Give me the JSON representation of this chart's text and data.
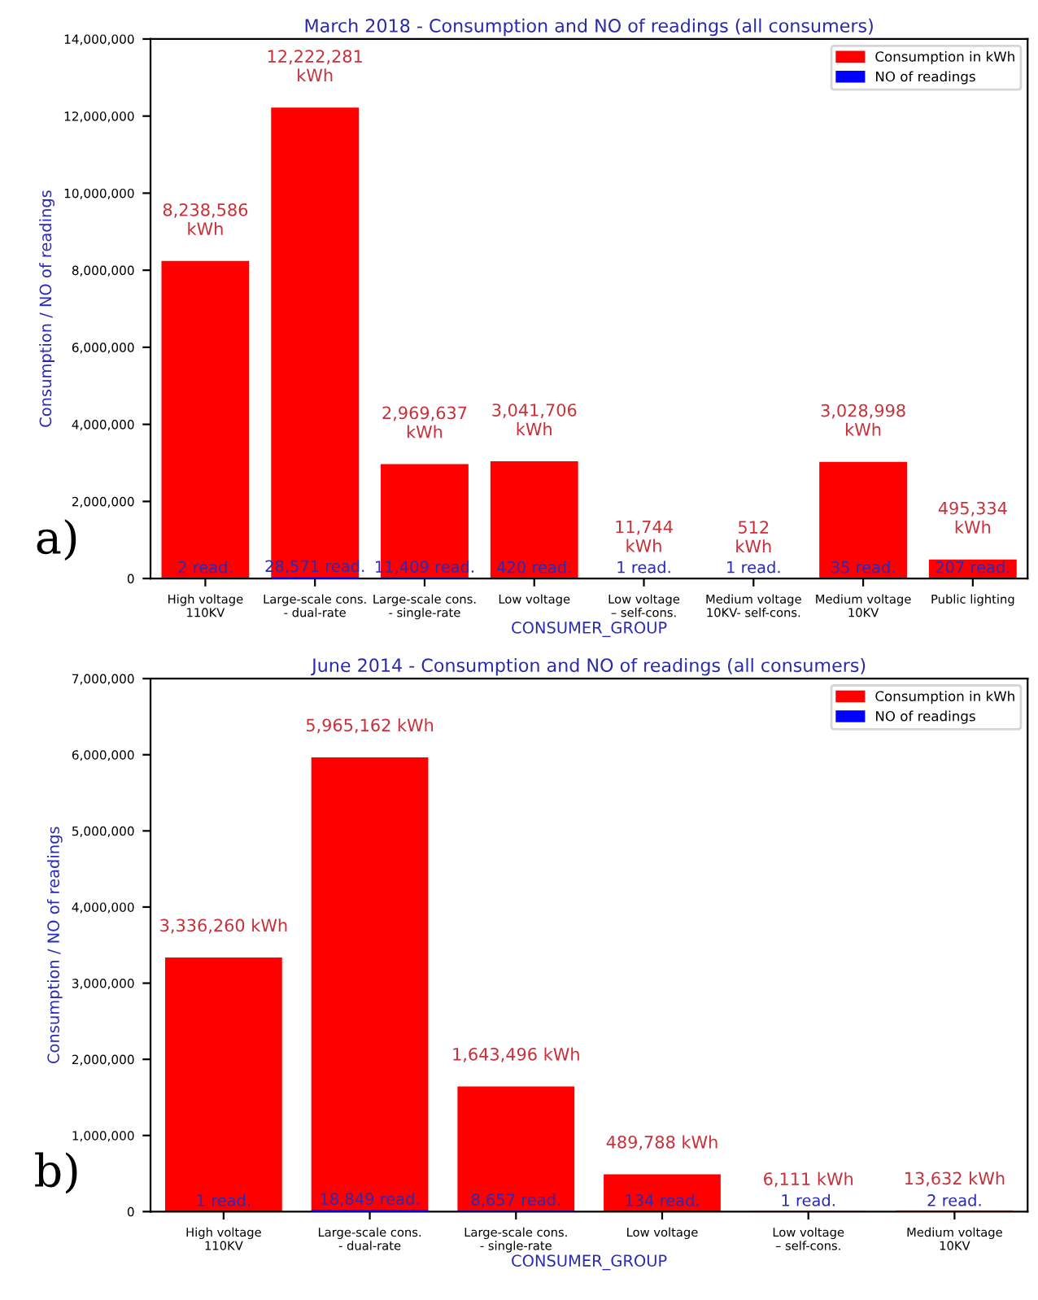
{
  "chart_data": [
    {
      "type": "bar",
      "title": "March 2018 - Consumption and NO of readings (all consumers)",
      "xlabel": "CONSUMER_GROUP",
      "ylabel": "Consumption / NO of readings",
      "categories": [
        "High voltage\n110KV",
        "Large-scale cons.\n- dual-rate",
        "Large-scale cons.\n- single-rate",
        "Low voltage",
        "Low voltage\n– self-cons.",
        "Medium voltage\n10KV- self-cons.",
        "Medium voltage\n10KV",
        "Public lighting"
      ],
      "series": [
        {
          "name": "Consumption in kWh",
          "color": "#ff0000",
          "values": [
            8238586,
            12222281,
            2969637,
            3041706,
            11744,
            512,
            3028998,
            495334
          ],
          "value_labels": [
            "8,238,586\nkWh",
            "12,222,281\nkWh",
            "2,969,637\nkWh",
            "3,041,706\nkWh",
            "11,744\nkWh",
            "512\nkWh",
            "3,028,998\nkWh",
            "495,334\nkWh"
          ]
        },
        {
          "name": "NO of readings",
          "color": "#0000ff",
          "values": [
            2,
            28571,
            11409,
            420,
            1,
            1,
            35,
            207
          ],
          "value_labels": [
            "2 read.",
            "28,571 read.",
            "11,409 read.",
            "420 read.",
            "1 read.",
            "1 read.",
            "35 read.",
            "207 read."
          ]
        }
      ],
      "ylim": [
        0,
        14000000
      ],
      "yticks": [
        {
          "value": 0,
          "label": "0"
        },
        {
          "value": 2000000,
          "label": "2,000,000"
        },
        {
          "value": 4000000,
          "label": "4,000,000"
        },
        {
          "value": 6000000,
          "label": "6,000,000"
        },
        {
          "value": 8000000,
          "label": "8,000,000"
        },
        {
          "value": 10000000,
          "label": "10,000,000"
        },
        {
          "value": 12000000,
          "label": "12,000,000"
        },
        {
          "value": 14000000,
          "label": "14,000,000"
        }
      ],
      "legend": "top right",
      "grid": false,
      "annotations": [
        "a)"
      ]
    },
    {
      "type": "bar",
      "title": "June 2014 - Consumption and NO of readings (all consumers)",
      "xlabel": "CONSUMER_GROUP",
      "ylabel": "Consumption / NO of readings",
      "categories": [
        "High voltage\n110KV",
        "Large-scale cons.\n- dual-rate",
        "Large-scale cons.\n- single-rate",
        "Low voltage",
        "Low voltage\n– self-cons.",
        "Medium voltage\n10KV"
      ],
      "series": [
        {
          "name": "Consumption in kWh",
          "color": "#ff0000",
          "values": [
            3336260,
            5965162,
            1643496,
            489788,
            6111,
            13632
          ],
          "value_labels": [
            "3,336,260 kWh",
            "5,965,162 kWh",
            "1,643,496 kWh",
            "489,788 kWh",
            "6,111 kWh",
            "13,632 kWh"
          ]
        },
        {
          "name": "NO of readings",
          "color": "#0000ff",
          "values": [
            1,
            18849,
            8657,
            134,
            1,
            2
          ],
          "value_labels": [
            "1 read.",
            "18,849 read.",
            "8,657 read.",
            "134 read.",
            "1 read.",
            "2 read."
          ]
        }
      ],
      "ylim": [
        0,
        7000000
      ],
      "yticks": [
        {
          "value": 0,
          "label": "0"
        },
        {
          "value": 1000000,
          "label": "1,000,000"
        },
        {
          "value": 2000000,
          "label": "2,000,000"
        },
        {
          "value": 3000000,
          "label": "3,000,000"
        },
        {
          "value": 4000000,
          "label": "4,000,000"
        },
        {
          "value": 5000000,
          "label": "5,000,000"
        },
        {
          "value": 6000000,
          "label": "6,000,000"
        },
        {
          "value": 7000000,
          "label": "7,000,000"
        }
      ],
      "legend": "top right",
      "grid": false,
      "annotations": [
        "b)"
      ]
    }
  ]
}
